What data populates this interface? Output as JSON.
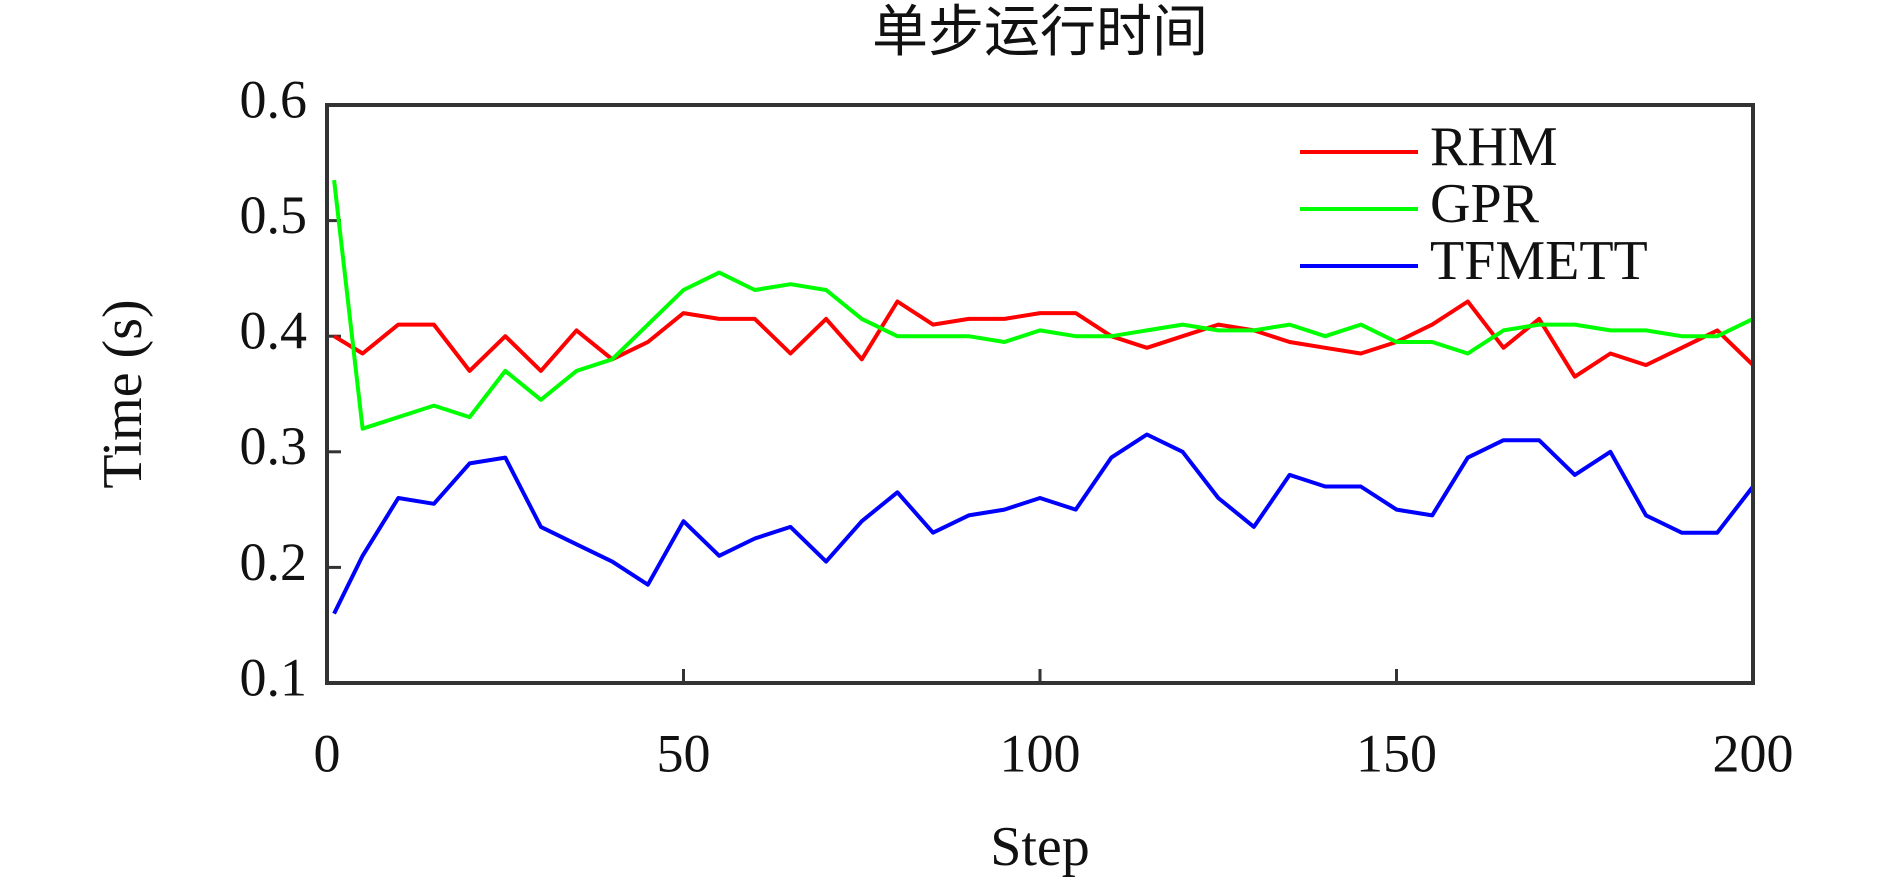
{
  "chart_data": {
    "type": "line",
    "title": "单步运行时间",
    "xlabel": "Step",
    "ylabel": "Time (s)",
    "x": [
      1,
      5,
      10,
      15,
      20,
      25,
      30,
      35,
      40,
      45,
      50,
      55,
      60,
      65,
      70,
      75,
      80,
      85,
      90,
      95,
      100,
      105,
      110,
      115,
      120,
      125,
      130,
      135,
      140,
      145,
      150,
      155,
      160,
      165,
      170,
      175,
      180,
      185,
      190,
      195,
      200
    ],
    "series": [
      {
        "name": "RHM",
        "color": "#ff0000",
        "values": [
          0.4,
          0.385,
          0.41,
          0.41,
          0.37,
          0.4,
          0.37,
          0.405,
          0.38,
          0.395,
          0.42,
          0.415,
          0.415,
          0.385,
          0.415,
          0.38,
          0.43,
          0.41,
          0.415,
          0.415,
          0.42,
          0.42,
          0.4,
          0.39,
          0.4,
          0.41,
          0.405,
          0.395,
          0.39,
          0.385,
          0.395,
          0.41,
          0.43,
          0.39,
          0.415,
          0.365,
          0.385,
          0.375,
          0.39,
          0.405,
          0.375
        ]
      },
      {
        "name": "GPR",
        "color": "#00ff00",
        "values": [
          0.535,
          0.32,
          0.33,
          0.34,
          0.33,
          0.37,
          0.345,
          0.37,
          0.38,
          0.41,
          0.44,
          0.455,
          0.44,
          0.445,
          0.44,
          0.415,
          0.4,
          0.4,
          0.4,
          0.395,
          0.405,
          0.4,
          0.4,
          0.405,
          0.41,
          0.405,
          0.405,
          0.41,
          0.4,
          0.41,
          0.395,
          0.395,
          0.385,
          0.405,
          0.41,
          0.41,
          0.405,
          0.405,
          0.4,
          0.4,
          0.415
        ]
      },
      {
        "name": "TFMETT",
        "color": "#0000ff",
        "values": [
          0.16,
          0.21,
          0.26,
          0.255,
          0.29,
          0.295,
          0.235,
          0.22,
          0.205,
          0.185,
          0.24,
          0.21,
          0.225,
          0.235,
          0.205,
          0.24,
          0.265,
          0.23,
          0.245,
          0.25,
          0.26,
          0.25,
          0.295,
          0.315,
          0.3,
          0.26,
          0.235,
          0.28,
          0.27,
          0.27,
          0.25,
          0.245,
          0.295,
          0.31,
          0.31,
          0.28,
          0.3,
          0.245,
          0.23,
          0.23,
          0.27
        ]
      }
    ],
    "xlim": [
      0,
      200
    ],
    "xticks": [
      0,
      50,
      100,
      150,
      200
    ],
    "ylim": [
      0.1,
      0.6
    ],
    "yticks": [
      0.1,
      0.2,
      0.3,
      0.4,
      0.5,
      0.6
    ],
    "legend": "upper right",
    "grid": false
  }
}
